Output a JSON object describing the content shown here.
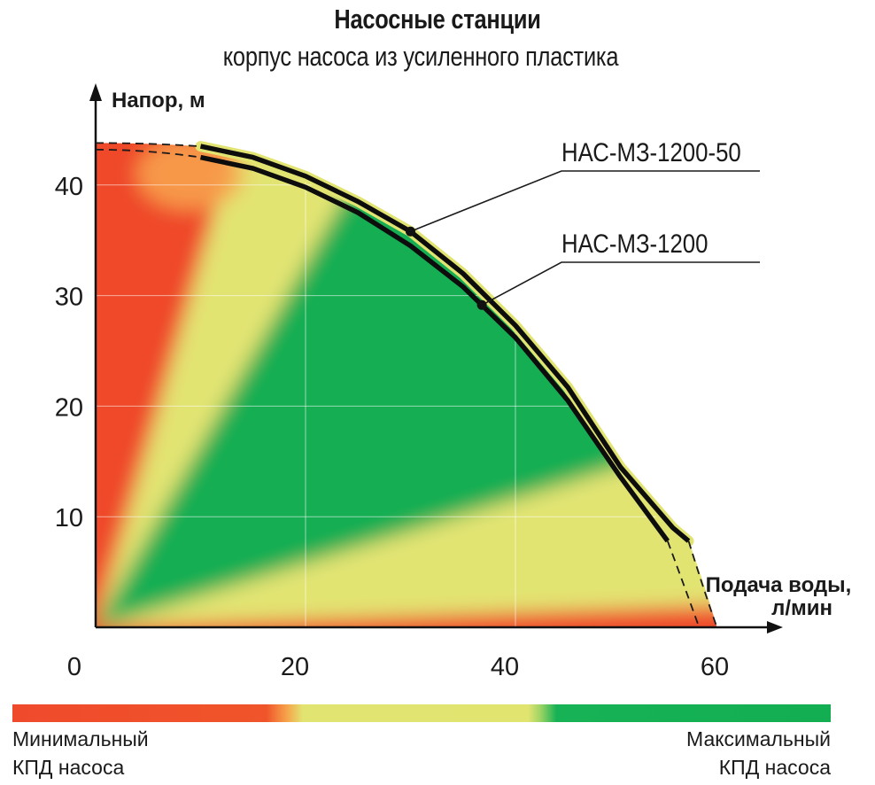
{
  "chart_data": {
    "type": "line",
    "title": "Насосные станции",
    "subtitle": "корпус насоса из усиленного пластика",
    "xlabel": "Подача воды, л/мин",
    "xlabel_lines": [
      "Подача воды,",
      "л/мин"
    ],
    "ylabel": "Напор, м",
    "xlim": [
      0,
      60
    ],
    "ylim": [
      0,
      45
    ],
    "xticks": [
      0,
      20,
      40,
      60
    ],
    "yticks": [
      10,
      20,
      30,
      40
    ],
    "grid": true,
    "series": [
      {
        "name": "НАС-МЗ-1200-50",
        "x": [
          10,
          15,
          20,
          25,
          30,
          35,
          40,
          45,
          50,
          55,
          56.5
        ],
        "y": [
          43.5,
          42.5,
          40.8,
          38.5,
          35.8,
          32.0,
          27.3,
          21.7,
          14.5,
          9.0,
          7.8
        ],
        "extrapolated": {
          "x_start": 0,
          "y_start": 43.8,
          "x_end": 59.2,
          "y_end": 0
        }
      },
      {
        "name": "НАС-МЗ-1200",
        "x": [
          10,
          15,
          20,
          25,
          30,
          35,
          40,
          45,
          50,
          54.5
        ],
        "y": [
          42.5,
          41.5,
          39.8,
          37.5,
          34.5,
          30.8,
          26.2,
          20.5,
          13.6,
          7.8
        ],
        "extrapolated": {
          "x_start": 0,
          "y_start": 43.2,
          "x_end": 57.5,
          "y_end": 0
        }
      }
    ],
    "colorbar": {
      "min_label": "Минимальный КПД насоса",
      "max_label": "Максимальный КПД насоса",
      "min_label_lines": [
        "Минимальный",
        "КПД насоса"
      ],
      "max_label_lines": [
        "Максимальный",
        "КПД насоса"
      ],
      "colors": {
        "min": "#ef4a2c",
        "mid": "#e2e472",
        "max": "#13ae52"
      }
    }
  }
}
